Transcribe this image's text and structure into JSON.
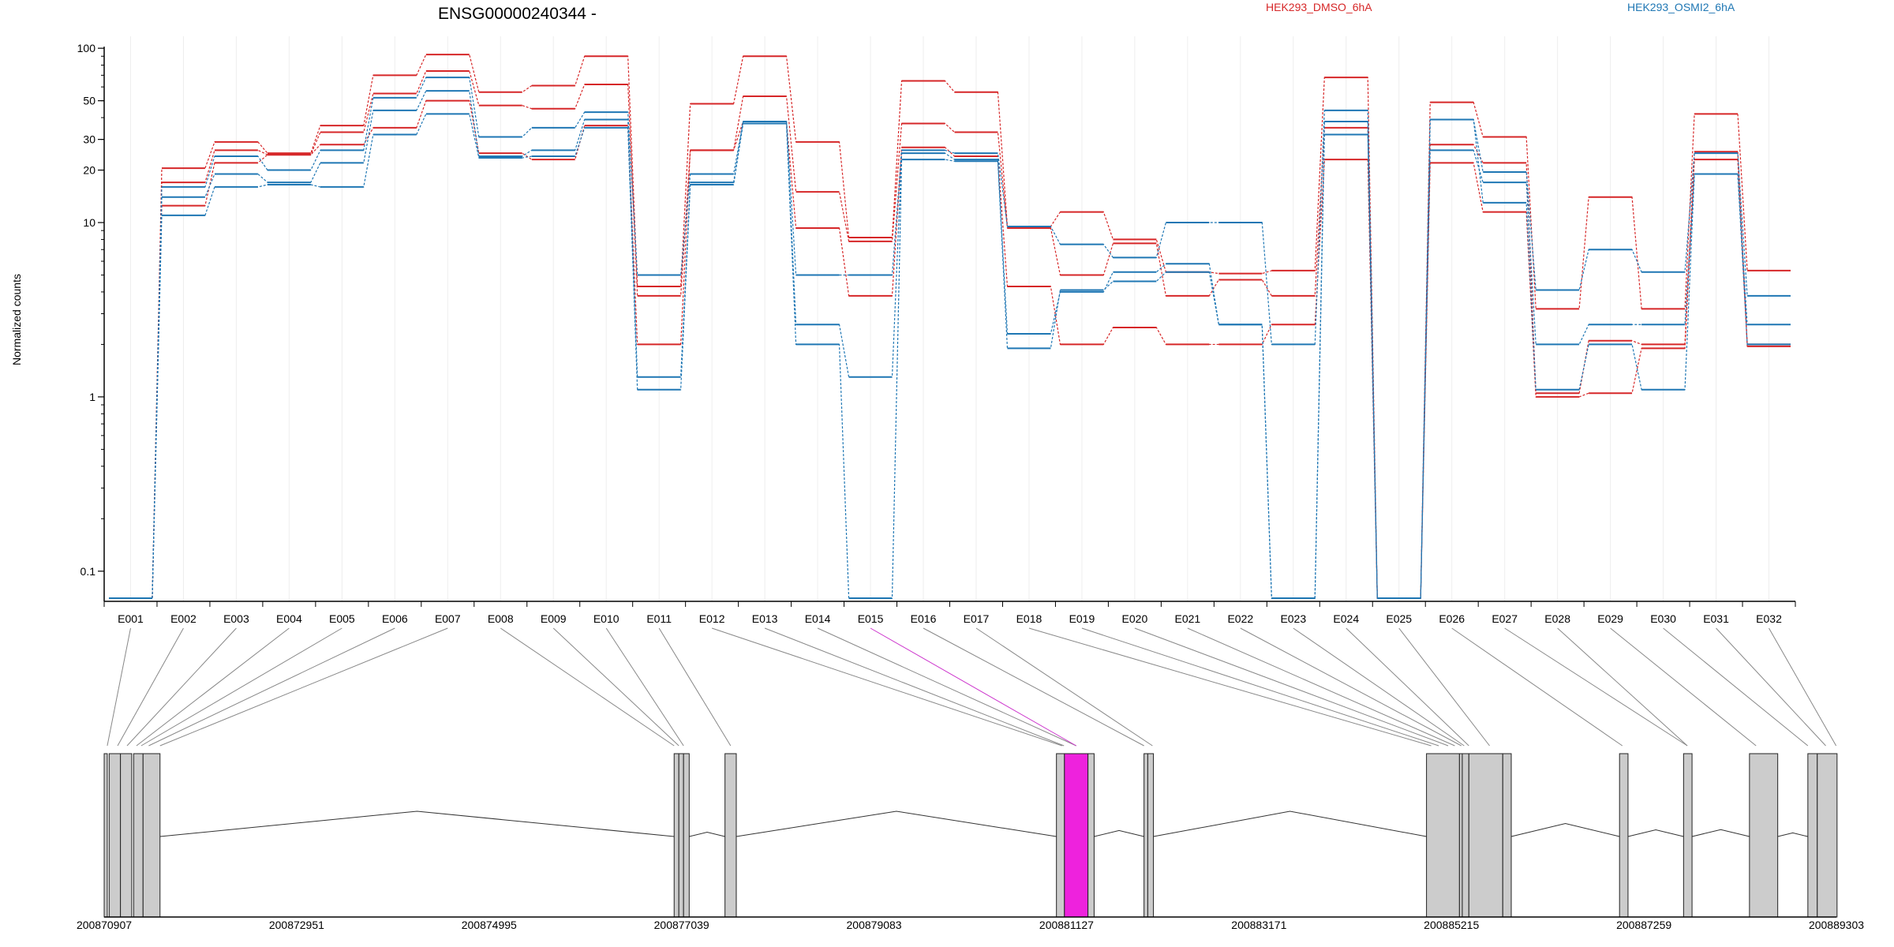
{
  "chart_data": {
    "type": "line",
    "title": "ENSG00000240344 -",
    "ylabel": "Normalized counts",
    "yscale": "log",
    "ylim": [
      0.07,
      110
    ],
    "yticks": [
      0.1,
      1,
      10,
      20,
      30,
      50,
      100
    ],
    "ytick_labels": [
      "0.1",
      "1",
      "10",
      "20",
      "30",
      "50",
      "100"
    ],
    "legend_placement": "top",
    "categories": [
      "E001",
      "E002",
      "E003",
      "E004",
      "E005",
      "E006",
      "E007",
      "E008",
      "E009",
      "E010",
      "E011",
      "E012",
      "E013",
      "E014",
      "E015",
      "E016",
      "E017",
      "E018",
      "E019",
      "E020",
      "E021",
      "E022",
      "E023",
      "E024",
      "E025",
      "E026",
      "E027",
      "E028",
      "E029",
      "E030",
      "E031",
      "E032"
    ],
    "series": [
      {
        "group": "HEK293_DMSO_6hA",
        "color": "#d62728",
        "values": [
          0.07,
          20.5,
          29,
          25,
          36,
          70,
          92,
          56,
          61,
          90,
          4.3,
          48,
          90,
          29,
          8.2,
          65,
          56,
          9.5,
          11.5,
          8.0,
          5.2,
          5.1,
          5.3,
          68,
          0.07,
          49,
          31,
          3.2,
          14,
          3.2,
          42,
          5.3
        ]
      },
      {
        "group": "HEK293_DMSO_6hA",
        "color": "#d62728",
        "values": [
          0.07,
          17,
          26,
          24.5,
          33,
          55,
          74,
          47,
          45,
          62,
          3.8,
          26,
          53,
          15,
          7.8,
          37,
          33,
          9.3,
          5.0,
          7.6,
          3.8,
          4.7,
          3.8,
          35,
          0.07,
          28,
          22,
          1.05,
          2.1,
          2.0,
          25.5,
          2.0
        ]
      },
      {
        "group": "HEK293_DMSO_6hA",
        "color": "#d62728",
        "values": [
          0.07,
          12.5,
          22,
          24.5,
          28,
          35,
          50,
          25,
          23,
          36,
          2.0,
          26,
          38,
          9.3,
          3.8,
          27,
          24,
          4.3,
          2.0,
          2.5,
          2.0,
          2.0,
          2.6,
          23,
          0.07,
          22,
          11.5,
          1.0,
          1.05,
          1.9,
          23,
          1.95
        ]
      },
      {
        "group": "HEK293_OSMI2_6hA",
        "color": "#1f77b4",
        "values": [
          0.07,
          16,
          24,
          20,
          26,
          52,
          68,
          31,
          35,
          43,
          5.0,
          19,
          38,
          5.0,
          5.0,
          26,
          25,
          9.5,
          7.5,
          6.3,
          10,
          10,
          2.0,
          44,
          0.07,
          39,
          19.5,
          4.1,
          7.0,
          5.2,
          25,
          3.8
        ]
      },
      {
        "group": "HEK293_OSMI2_6hA",
        "color": "#1f77b4",
        "values": [
          0.07,
          14,
          19,
          17,
          22,
          44,
          57,
          24,
          26,
          39,
          1.3,
          17,
          38,
          2.6,
          1.3,
          25,
          23,
          2.3,
          4.0,
          5.2,
          5.8,
          2.6,
          0.07,
          38,
          0.07,
          26,
          17,
          2.0,
          2.6,
          2.6,
          19,
          2.6
        ]
      },
      {
        "group": "HEK293_OSMI2_6hA",
        "color": "#1f77b4",
        "values": [
          0.07,
          11,
          16,
          16.5,
          16,
          32,
          42,
          23.5,
          24,
          35,
          1.1,
          16.5,
          37,
          2.0,
          0.07,
          23,
          22.5,
          1.9,
          4.1,
          4.6,
          5.2,
          2.6,
          0.07,
          32,
          0.07,
          39,
          13,
          1.1,
          2.0,
          1.1,
          19,
          2.0
        ]
      }
    ],
    "gene_model": {
      "genomic_axis_labels": [
        "200870907",
        "200872951",
        "200874995",
        "200877039",
        "200879083",
        "200881127",
        "200883171",
        "200885215",
        "200887259",
        "200889303"
      ],
      "genomic_start": 200870907,
      "genomic_end": 200889303,
      "highlighted_exon": "E015",
      "highlight_color": "#ee22dd",
      "exon_fill": "#cccccc",
      "exon_ranges": [
        [
          200870907,
          200870940
        ],
        [
          200870960,
          200871080
        ],
        [
          200871080,
          200871200
        ],
        [
          200871220,
          200871320
        ],
        [
          200871320,
          200871500
        ],
        [
          200876960,
          200877010
        ],
        [
          200877010,
          200877060
        ],
        [
          200877060,
          200877120
        ],
        [
          200877500,
          200877620
        ],
        [
          200881020,
          200881105
        ],
        [
          200881105,
          200881355
        ],
        [
          200881355,
          200881420
        ],
        [
          200881950,
          200881990
        ],
        [
          200881990,
          200882050
        ],
        [
          200884950,
          200885300
        ],
        [
          200885300,
          200885330
        ],
        [
          200885330,
          200885400
        ],
        [
          200885400,
          200885760
        ],
        [
          200885760,
          200885850
        ],
        [
          200887000,
          200887090
        ],
        [
          200887680,
          200887770
        ],
        [
          200888380,
          200888680
        ],
        [
          200889000,
          200889100
        ],
        [
          200889100,
          200889310
        ]
      ],
      "exon_link_genomic": [
        200870940,
        200871050,
        200871150,
        200871250,
        200871300,
        200871380,
        200871500,
        200876960,
        200877010,
        200877060,
        200877560,
        200881080,
        200881100,
        200881230,
        200881230,
        200881950,
        200882040,
        200885000,
        200885080,
        200885180,
        200885250,
        200885320,
        200885350,
        200885400,
        200885620,
        200887030,
        200887720,
        200887720,
        200888450,
        200889000,
        200889190,
        200889300
      ]
    }
  }
}
